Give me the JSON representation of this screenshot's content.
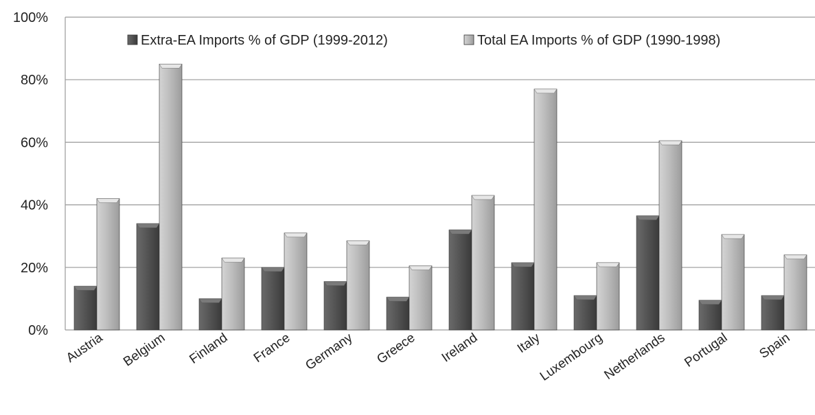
{
  "chart_data": {
    "type": "bar",
    "categories": [
      "Austria",
      "Belgium",
      "Finland",
      "France",
      "Germany",
      "Greece",
      "Ireland",
      "Italy",
      "Luxembourg",
      "Netherlands",
      "Portugal",
      "Spain"
    ],
    "series": [
      {
        "name": "Extra-EA Imports % of GDP (1999-2012)",
        "color": "#555555",
        "values": [
          14,
          34,
          10,
          20,
          15.5,
          10.5,
          32,
          21.5,
          11,
          36.5,
          9.5,
          11
        ]
      },
      {
        "name": "Total EA Imports % of GDP (1990-1998)",
        "color": "#bbbbbb",
        "values": [
          42,
          85,
          23,
          31,
          28.5,
          20.5,
          43,
          77,
          21.5,
          60.5,
          30.5,
          24
        ]
      }
    ],
    "ylim": [
      0,
      100
    ],
    "yticks": [
      "0%",
      "20%",
      "40%",
      "60%",
      "80%",
      "100%"
    ],
    "ytick_values": [
      0,
      20,
      40,
      60,
      80,
      100
    ],
    "grid": true,
    "legend_position": "top",
    "style": "3d-bars"
  }
}
